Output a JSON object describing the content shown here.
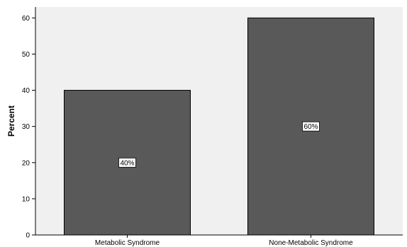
{
  "chart_data": {
    "type": "bar",
    "title": "",
    "xlabel": "",
    "ylabel": "Percent",
    "categories": [
      "Metabolic Syndrome",
      "None-Metabolic Syndrome"
    ],
    "values": [
      40,
      60
    ],
    "data_labels": [
      "40%",
      "60%"
    ],
    "ylim": [
      0,
      63
    ],
    "yticks": [
      0,
      10,
      20,
      30,
      40,
      50,
      60
    ],
    "grid": false,
    "legend": "none"
  },
  "colors": {
    "plot_background": "#f0f0f0",
    "bar_fill": "#595959",
    "bar_stroke": "#000000",
    "axis": "#000000",
    "label_box": "#ffffff"
  }
}
